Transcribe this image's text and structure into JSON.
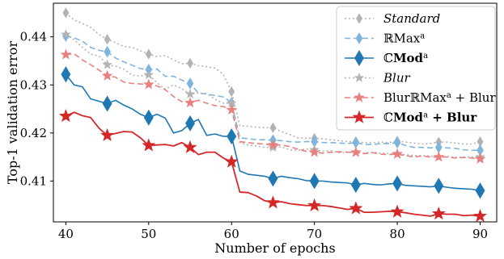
{
  "chart_data": {
    "type": "line",
    "xlabel": "Number of epochs",
    "ylabel": "Top-1 validation error",
    "xlim": [
      38.5,
      92
    ],
    "ylim": [
      0.4015,
      0.447
    ],
    "xticks": [
      40,
      50,
      60,
      70,
      80,
      90
    ],
    "yticks": [
      0.41,
      0.42,
      0.43,
      0.44
    ],
    "ytick_labels": [
      "0.41",
      "0.42",
      "0.43",
      "0.44"
    ],
    "grid": false,
    "legend_position": "top-right",
    "x": [
      40,
      41,
      42,
      43,
      44,
      45,
      46,
      47,
      48,
      49,
      50,
      51,
      52,
      53,
      54,
      55,
      56,
      57,
      58,
      59,
      60,
      61,
      62,
      63,
      64,
      65,
      66,
      67,
      68,
      69,
      70,
      71,
      72,
      73,
      74,
      75,
      76,
      77,
      78,
      79,
      80,
      81,
      82,
      83,
      84,
      85,
      86,
      87,
      88,
      89,
      90
    ],
    "marker_every": 5,
    "series": [
      {
        "name": "Standard",
        "name_parts": [
          {
            "t": "Standard",
            "i": true
          }
        ],
        "color": "#b3b3b3",
        "dash": "2,3",
        "width": 1.6,
        "marker": "diamond",
        "marker_size": 4.5,
        "values": [
          0.445,
          0.4435,
          0.4428,
          0.442,
          0.4405,
          0.4395,
          0.4388,
          0.438,
          0.4378,
          0.4371,
          0.4364,
          0.4359,
          0.4361,
          0.4352,
          0.4344,
          0.4345,
          0.434,
          0.4338,
          0.4335,
          0.4322,
          0.4286,
          0.4215,
          0.4214,
          0.4212,
          0.4211,
          0.4211,
          0.4203,
          0.4197,
          0.419,
          0.4189,
          0.4189,
          0.4188,
          0.4186,
          0.4184,
          0.4182,
          0.4182,
          0.418,
          0.418,
          0.4181,
          0.418,
          0.4183,
          0.4181,
          0.4179,
          0.4177,
          0.4178,
          0.4181,
          0.4181,
          0.4179,
          0.4177,
          0.4177,
          0.4182
        ]
      },
      {
        "name": "ℝMaxᵃ",
        "name_parts": [
          {
            "t": "ℝMax"
          },
          {
            "t": "a",
            "sup": true
          }
        ],
        "color": "#7fb4dc",
        "dash": "7,4",
        "width": 1.6,
        "marker": "diamond",
        "marker_size": 5,
        "values": [
          0.4402,
          0.4398,
          0.4391,
          0.4378,
          0.4372,
          0.4369,
          0.4356,
          0.4348,
          0.4341,
          0.4334,
          0.4332,
          0.4333,
          0.4318,
          0.4318,
          0.431,
          0.4303,
          0.4283,
          0.4281,
          0.4278,
          0.4275,
          0.4263,
          0.419,
          0.4188,
          0.4186,
          0.4186,
          0.4185,
          0.4184,
          0.4182,
          0.4181,
          0.4182,
          0.4182,
          0.418,
          0.418,
          0.4179,
          0.4178,
          0.418,
          0.4176,
          0.4176,
          0.4178,
          0.4178,
          0.418,
          0.4174,
          0.417,
          0.417,
          0.4169,
          0.417,
          0.4169,
          0.4168,
          0.4165,
          0.4164,
          0.4164
        ]
      },
      {
        "name": "ℂModᵃ",
        "name_parts": [
          {
            "t": "ℂ"
          },
          {
            "t": "Mod",
            "b": true
          },
          {
            "t": "a",
            "sup": true
          }
        ],
        "color": "#1f77b4",
        "dash": "",
        "width": 1.6,
        "marker": "diamond",
        "marker_size": 7,
        "values": [
          0.4322,
          0.43,
          0.4296,
          0.4271,
          0.4266,
          0.4261,
          0.4268,
          0.4258,
          0.425,
          0.4239,
          0.4232,
          0.4239,
          0.4231,
          0.42,
          0.4205,
          0.422,
          0.4228,
          0.4195,
          0.4198,
          0.4193,
          0.4193,
          0.4121,
          0.4114,
          0.4112,
          0.411,
          0.4105,
          0.411,
          0.4107,
          0.4105,
          0.4101,
          0.41,
          0.41,
          0.4098,
          0.4097,
          0.4096,
          0.4092,
          0.4095,
          0.4093,
          0.4092,
          0.4094,
          0.4095,
          0.4091,
          0.409,
          0.4089,
          0.4088,
          0.409,
          0.4087,
          0.4085,
          0.4084,
          0.4083,
          0.408
        ]
      },
      {
        "name": "Blur",
        "name_parts": [
          {
            "t": "Blur",
            "i": true
          }
        ],
        "color": "#b3b3b3",
        "dash": "2,3",
        "width": 1.6,
        "marker": "star",
        "marker_size": 5,
        "values": [
          0.4405,
          0.4394,
          0.4378,
          0.4364,
          0.436,
          0.4342,
          0.4339,
          0.4333,
          0.432,
          0.4319,
          0.4321,
          0.4305,
          0.4291,
          0.43,
          0.4292,
          0.4281,
          0.4283,
          0.4282,
          0.427,
          0.4262,
          0.4262,
          0.418,
          0.4175,
          0.4173,
          0.417,
          0.417,
          0.4171,
          0.4165,
          0.4164,
          0.4167,
          0.4165,
          0.4162,
          0.4163,
          0.4159,
          0.416,
          0.4159,
          0.4158,
          0.416,
          0.4158,
          0.4157,
          0.4157,
          0.4155,
          0.4153,
          0.4153,
          0.4152,
          0.415,
          0.4151,
          0.4149,
          0.415,
          0.415,
          0.415
        ]
      },
      {
        "name": "BlurℝMaxᵃ + Blur",
        "name_parts": [
          {
            "t": "BlurℝMax"
          },
          {
            "t": "a",
            "sup": true
          },
          {
            "t": " + Blur"
          }
        ],
        "color": "#e8807e",
        "dash": "7,4",
        "width": 1.6,
        "marker": "star",
        "marker_size": 5.5,
        "values": [
          0.4363,
          0.4365,
          0.4352,
          0.4342,
          0.4331,
          0.4319,
          0.4316,
          0.4306,
          0.4303,
          0.4302,
          0.4301,
          0.4298,
          0.429,
          0.4276,
          0.4265,
          0.4263,
          0.4268,
          0.4262,
          0.4257,
          0.4255,
          0.4248,
          0.4182,
          0.418,
          0.4178,
          0.4177,
          0.4175,
          0.4175,
          0.4172,
          0.4166,
          0.4162,
          0.416,
          0.4158,
          0.416,
          0.4161,
          0.416,
          0.416,
          0.4157,
          0.4159,
          0.4156,
          0.4155,
          0.4156,
          0.4153,
          0.415,
          0.4152,
          0.415,
          0.415,
          0.415,
          0.4148,
          0.4149,
          0.4148,
          0.4146
        ]
      },
      {
        "name": "ℂModᵃ + Blur",
        "name_parts": [
          {
            "t": "ℂ"
          },
          {
            "t": "Mod",
            "b": true
          },
          {
            "t": "a",
            "sup": true
          },
          {
            "t": " + Blur",
            "b": true
          }
        ],
        "color": "#d62728",
        "dash": "",
        "width": 1.8,
        "marker": "star",
        "marker_size": 7,
        "values": [
          0.4235,
          0.4243,
          0.4236,
          0.4232,
          0.421,
          0.4195,
          0.4199,
          0.4203,
          0.4202,
          0.419,
          0.4174,
          0.4175,
          0.4176,
          0.4173,
          0.418,
          0.417,
          0.4155,
          0.416,
          0.416,
          0.4148,
          0.414,
          0.4077,
          0.4076,
          0.4069,
          0.4059,
          0.4055,
          0.4057,
          0.4053,
          0.4051,
          0.4049,
          0.4049,
          0.4049,
          0.4047,
          0.4044,
          0.4041,
          0.4043,
          0.4035,
          0.4035,
          0.4036,
          0.4037,
          0.4036,
          0.4034,
          0.4031,
          0.4029,
          0.4027,
          0.4032,
          0.4031,
          0.4031,
          0.4028,
          0.4029,
          0.4027
        ]
      }
    ]
  }
}
